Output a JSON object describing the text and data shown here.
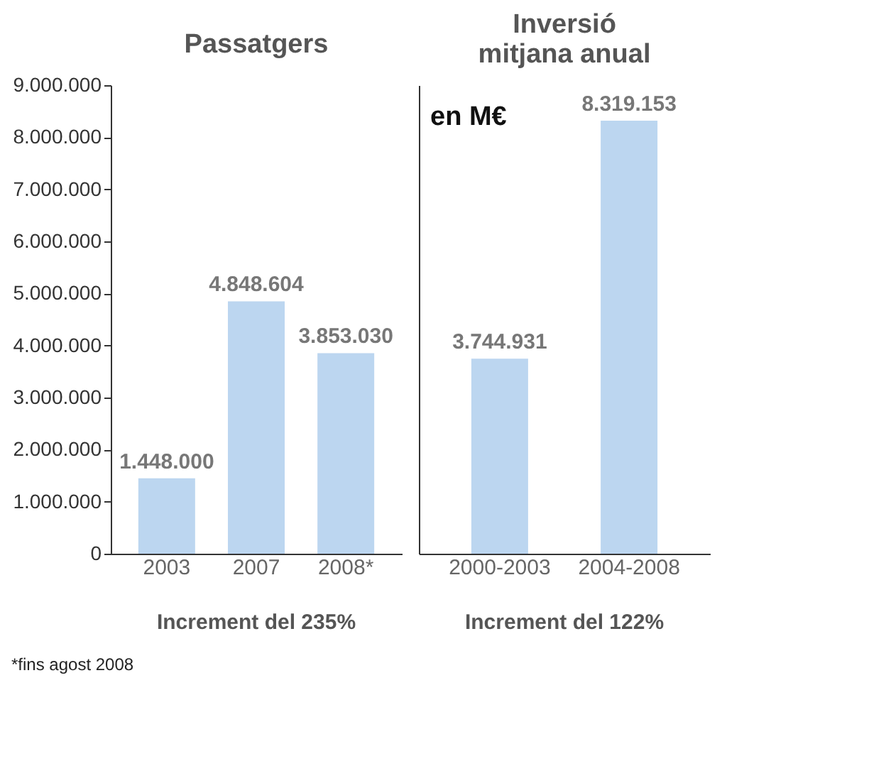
{
  "chart_data": [
    {
      "type": "bar",
      "title": "Passatgers",
      "categories": [
        "2003",
        "2007",
        "2008*"
      ],
      "values": [
        1448000,
        4848604,
        3853030
      ],
      "value_labels": [
        "1.448.000",
        "4.848.604",
        "3.853.030"
      ],
      "color": "#bcd6f0",
      "ylim": [
        0,
        9000000
      ],
      "yticks": [
        0,
        {
          "value": 1000000,
          "label": "1.000.000"
        },
        {
          "value": 2000000,
          "label": "2.000.000"
        },
        {
          "value": 3000000,
          "label": "3.000.000"
        },
        {
          "value": 4000000,
          "label": "4.000.000"
        },
        {
          "value": 5000000,
          "label": "5.000.000"
        },
        {
          "value": 6000000,
          "label": "6.000.000"
        },
        {
          "value": 7000000,
          "label": "7.000.000"
        },
        {
          "value": 8000000,
          "label": "8.000.000"
        },
        {
          "value": 9000000,
          "label": "9.000.000"
        }
      ],
      "annotations": [
        "Increment del 235%",
        "*fins agost 2008"
      ]
    },
    {
      "type": "bar",
      "title": "Inversió\nmitjana anual",
      "subtitle": "en M€",
      "categories": [
        "2000-2003",
        "2004-2008"
      ],
      "values": [
        3744931,
        8319153
      ],
      "value_labels": [
        "3.744.931",
        "8.319.153"
      ],
      "color": "#bcd6f0",
      "ylim": [
        0,
        9000000
      ],
      "tick_labels": "x",
      "annotations": [
        "Increment del 122%"
      ]
    }
  ]
}
